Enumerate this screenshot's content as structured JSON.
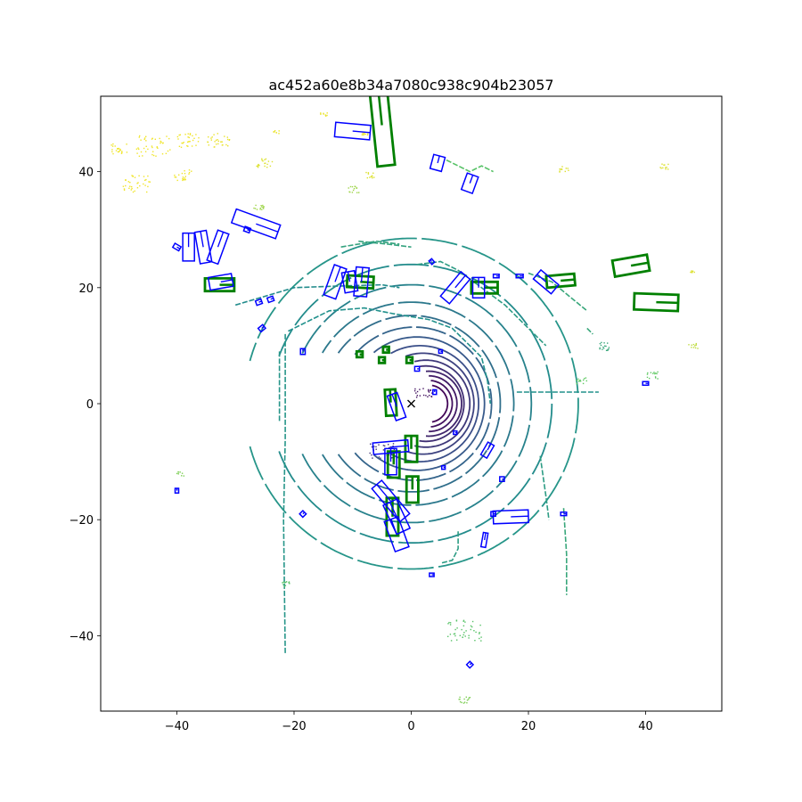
{
  "chart_data": {
    "type": "scatter",
    "title": "ac452a60e8b34a7080c938c904b23057",
    "xlabel": "",
    "ylabel": "",
    "xlim": [
      -53,
      53
    ],
    "ylim": [
      -53,
      53
    ],
    "xticks": [
      -40,
      -20,
      0,
      20,
      40
    ],
    "yticks": [
      -40,
      -20,
      0,
      20,
      40
    ],
    "xtick_labels": [
      "−40",
      "−20",
      "0",
      "20",
      "40"
    ],
    "ytick_labels": [
      "−40",
      "−20",
      "0",
      "20",
      "40"
    ],
    "grid": false,
    "ego_marker": {
      "x": 0,
      "y": 0,
      "symbol": "x"
    },
    "colors": {
      "prediction_boxes": "#0000ff",
      "ground_truth_boxes": "#008000",
      "point_colormap": [
        "#440154",
        "#3b528b",
        "#21918c",
        "#5ec962",
        "#fde725"
      ]
    },
    "point_rings": [
      {
        "cx": 3,
        "cy": 0,
        "r": 3.2,
        "t0": -80,
        "t1": 80,
        "level": 0.02
      },
      {
        "cx": 3,
        "cy": 0,
        "r": 4.0,
        "t0": -85,
        "t1": 85,
        "level": 0.05
      },
      {
        "cx": 3,
        "cy": 0,
        "r": 4.8,
        "t0": -90,
        "t1": 90,
        "level": 0.08
      },
      {
        "cx": 3,
        "cy": 0,
        "r": 5.6,
        "t0": -95,
        "t1": 95,
        "level": 0.11
      },
      {
        "cx": 2.5,
        "cy": 0,
        "r": 6.5,
        "t0": -100,
        "t1": 100,
        "level": 0.14
      },
      {
        "cx": 2.5,
        "cy": 0,
        "r": 7.5,
        "t0": -105,
        "t1": 105,
        "level": 0.17
      },
      {
        "cx": 2,
        "cy": 0,
        "r": 8.7,
        "t0": -110,
        "t1": 110,
        "level": 0.2
      },
      {
        "cx": 1.5,
        "cy": 0,
        "r": 10.0,
        "t0": -120,
        "t1": 120,
        "level": 0.24
      },
      {
        "cx": 1,
        "cy": 0,
        "r": 11.5,
        "t0": -130,
        "t1": 130,
        "level": 0.28
      },
      {
        "cx": 0.5,
        "cy": 0,
        "r": 13.2,
        "t0": -140,
        "t1": 140,
        "level": 0.32
      },
      {
        "cx": 0,
        "cy": 0,
        "r": 15.2,
        "t0": -145,
        "t1": 145,
        "level": 0.36
      },
      {
        "cx": 0,
        "cy": 0,
        "r": 17.5,
        "t0": -150,
        "t1": 150,
        "level": 0.4
      },
      {
        "cx": 0,
        "cy": 0,
        "r": 20.5,
        "t0": -155,
        "t1": 155,
        "level": 0.44
      },
      {
        "cx": 0,
        "cy": 0,
        "r": 24.0,
        "t0": -160,
        "t1": 160,
        "level": 0.48
      },
      {
        "cx": 0,
        "cy": 0,
        "r": 28.5,
        "t0": -165,
        "t1": 165,
        "level": 0.52
      }
    ],
    "point_polylines": [
      {
        "level": 0.52,
        "points": [
          [
            -21.5,
            12
          ],
          [
            -21.5,
            -6
          ],
          [
            -21.8,
            -20
          ],
          [
            -21.5,
            -43
          ]
        ]
      },
      {
        "level": 0.52,
        "points": [
          [
            -22.5,
            9
          ],
          [
            -22.5,
            -3
          ]
        ]
      },
      {
        "level": 0.55,
        "points": [
          [
            22,
            -9
          ],
          [
            23,
            -16
          ],
          [
            23.5,
            -20
          ]
        ]
      },
      {
        "level": 0.6,
        "points": [
          [
            26,
            -18
          ],
          [
            26.5,
            -26
          ],
          [
            26.5,
            -33
          ]
        ]
      },
      {
        "level": 0.5,
        "points": [
          [
            -21,
            12.5
          ],
          [
            -14,
            16
          ],
          [
            -8,
            16.5
          ],
          [
            -3,
            15.5
          ],
          [
            3,
            14.5
          ],
          [
            7,
            13
          ],
          [
            10,
            10
          ],
          [
            12,
            8
          ],
          [
            13,
            4
          ],
          [
            13.5,
            0
          ]
        ]
      },
      {
        "level": 0.48,
        "points": [
          [
            -30,
            17
          ],
          [
            -20,
            20
          ],
          [
            -12,
            20.3
          ],
          [
            -5,
            20.5
          ],
          [
            -2,
            20
          ]
        ]
      },
      {
        "level": 0.55,
        "points": [
          [
            1,
            24
          ],
          [
            5,
            24.5
          ],
          [
            8,
            23
          ],
          [
            12,
            20
          ],
          [
            16,
            17
          ],
          [
            19,
            14
          ],
          [
            23,
            10
          ]
        ]
      },
      {
        "level": 0.58,
        "points": [
          [
            -9,
            28
          ],
          [
            -4,
            27.5
          ],
          [
            0,
            27
          ]
        ]
      },
      {
        "level": 0.6,
        "points": [
          [
            20,
            22.5
          ],
          [
            24,
            21
          ],
          [
            27,
            18.5
          ],
          [
            30,
            16
          ]
        ]
      },
      {
        "level": 0.5,
        "points": [
          [
            18,
            2
          ],
          [
            20,
            2
          ],
          [
            24,
            2
          ],
          [
            28,
            2
          ],
          [
            32,
            2
          ]
        ]
      },
      {
        "level": 0.55,
        "points": [
          [
            8,
            -22
          ],
          [
            8,
            -25
          ],
          [
            7,
            -27
          ],
          [
            5,
            -27.5
          ]
        ]
      },
      {
        "level": 0.58,
        "points": [
          [
            -12,
            27
          ],
          [
            -6,
            28
          ],
          [
            -2,
            27.5
          ]
        ]
      },
      {
        "level": 0.72,
        "points": [
          [
            6,
            42
          ],
          [
            8,
            41
          ],
          [
            10,
            40
          ],
          [
            12,
            41
          ],
          [
            14,
            40
          ]
        ]
      },
      {
        "level": 0.6,
        "points": [
          [
            30,
            13
          ],
          [
            31,
            12
          ]
        ]
      }
    ],
    "point_clusters": [
      {
        "x": -50,
        "y": 44,
        "spread": 1.5,
        "level": 0.98
      },
      {
        "x": -44,
        "y": 44.5,
        "spread": 3,
        "level": 0.98
      },
      {
        "x": -38,
        "y": 45.5,
        "spread": 2,
        "level": 0.98
      },
      {
        "x": -33,
        "y": 45.5,
        "spread": 2,
        "level": 0.97
      },
      {
        "x": -47,
        "y": 38,
        "spread": 2.5,
        "level": 0.98
      },
      {
        "x": -39,
        "y": 39.5,
        "spread": 1.5,
        "level": 0.98
      },
      {
        "x": -25,
        "y": 41.5,
        "spread": 1.5,
        "level": 0.95
      },
      {
        "x": -23,
        "y": 47,
        "spread": 0.6,
        "level": 0.97
      },
      {
        "x": -15,
        "y": 50,
        "spread": 0.6,
        "level": 0.97
      },
      {
        "x": -8,
        "y": 46.5,
        "spread": 0.6,
        "level": 0.97
      },
      {
        "x": -7,
        "y": 39.5,
        "spread": 0.8,
        "level": 0.95
      },
      {
        "x": 26,
        "y": 40.5,
        "spread": 0.8,
        "level": 0.95
      },
      {
        "x": 43,
        "y": 41,
        "spread": 0.8,
        "level": 0.95
      },
      {
        "x": 48,
        "y": 10,
        "spread": 0.8,
        "level": 0.9
      },
      {
        "x": 48,
        "y": 23,
        "spread": 0.6,
        "level": 0.95
      },
      {
        "x": 29,
        "y": 4,
        "spread": 1,
        "level": 0.75
      },
      {
        "x": 41,
        "y": 5,
        "spread": 1,
        "level": 0.75
      },
      {
        "x": 33,
        "y": 10,
        "spread": 1.2,
        "level": 0.6
      },
      {
        "x": -10,
        "y": 37,
        "spread": 1,
        "level": 0.85
      },
      {
        "x": -26,
        "y": 34,
        "spread": 1,
        "level": 0.85
      },
      {
        "x": 9,
        "y": -39,
        "spread": 3,
        "level": 0.72
      },
      {
        "x": 9,
        "y": -51,
        "spread": 1,
        "level": 0.8
      },
      {
        "x": -21.5,
        "y": -31,
        "spread": 0.8,
        "level": 0.72
      },
      {
        "x": -39.5,
        "y": -12,
        "spread": 0.6,
        "level": 0.8
      },
      {
        "x": -5,
        "y": -8,
        "spread": 2.2,
        "level": 0.15
      },
      {
        "x": 2,
        "y": 2,
        "spread": 1.5,
        "level": 0.05
      }
    ],
    "boxes": [
      {
        "kind": "gt",
        "cx": -5.0,
        "cy": 48.0,
        "w": 3.0,
        "h": 14.0,
        "angle": 6
      },
      {
        "kind": "gt",
        "cx": 41.8,
        "cy": 17.5,
        "w": 7.5,
        "h": 2.8,
        "angle": -2
      },
      {
        "kind": "gt",
        "cx": 37.5,
        "cy": 23.8,
        "w": 6.0,
        "h": 2.8,
        "angle": 10
      },
      {
        "kind": "gt",
        "cx": 25.5,
        "cy": 21.2,
        "w": 4.8,
        "h": 2.0,
        "angle": 5
      },
      {
        "kind": "gt",
        "cx": 12.5,
        "cy": 20.0,
        "w": 4.5,
        "h": 2.0,
        "angle": 0
      },
      {
        "kind": "gt",
        "cx": -8.7,
        "cy": 21.0,
        "w": 4.5,
        "h": 2.0,
        "angle": -3
      },
      {
        "kind": "gt",
        "cx": -32.7,
        "cy": 20.5,
        "w": 5.0,
        "h": 2.2,
        "angle": 0
      },
      {
        "kind": "gt",
        "cx": -3.5,
        "cy": 0.2,
        "w": 1.8,
        "h": 4.5,
        "angle": 3
      },
      {
        "kind": "gt",
        "cx": -3.0,
        "cy": -10.5,
        "w": 2.0,
        "h": 4.5,
        "angle": 0
      },
      {
        "kind": "gt",
        "cx": 0.0,
        "cy": -7.8,
        "w": 2.0,
        "h": 4.5,
        "angle": 0
      },
      {
        "kind": "gt",
        "cx": 0.2,
        "cy": -14.8,
        "w": 2.0,
        "h": 4.5,
        "angle": 0
      },
      {
        "kind": "gt",
        "cx": -3.2,
        "cy": -19.5,
        "w": 2.0,
        "h": 6.5,
        "angle": 0
      },
      {
        "kind": "gt",
        "cx": -5.0,
        "cy": 7.5,
        "w": 1.0,
        "h": 1.0,
        "angle": 0
      },
      {
        "kind": "gt",
        "cx": -4.3,
        "cy": 9.3,
        "w": 1.0,
        "h": 1.0,
        "angle": 0
      },
      {
        "kind": "gt",
        "cx": -0.3,
        "cy": 7.5,
        "w": 1.0,
        "h": 1.0,
        "angle": 0
      },
      {
        "kind": "gt",
        "cx": -8.8,
        "cy": 8.5,
        "w": 1.0,
        "h": 1.0,
        "angle": 0
      },
      {
        "kind": "pred",
        "cx": -10.0,
        "cy": 47.0,
        "w": 6.0,
        "h": 2.5,
        "angle": -5
      },
      {
        "kind": "pred",
        "cx": 4.5,
        "cy": 41.5,
        "w": 2.0,
        "h": 2.5,
        "angle": -15
      },
      {
        "kind": "pred",
        "cx": 10.0,
        "cy": 38.0,
        "w": 2.0,
        "h": 3.0,
        "angle": -20
      },
      {
        "kind": "pred",
        "cx": -26.5,
        "cy": 31.0,
        "w": 8.0,
        "h": 2.5,
        "angle": -20
      },
      {
        "kind": "pred",
        "cx": -38.0,
        "cy": 27.0,
        "w": 2.0,
        "h": 4.8,
        "angle": 0
      },
      {
        "kind": "pred",
        "cx": -35.5,
        "cy": 27.0,
        "w": 2.0,
        "h": 5.5,
        "angle": 10
      },
      {
        "kind": "pred",
        "cx": -33.0,
        "cy": 27.0,
        "w": 2.0,
        "h": 5.5,
        "angle": -20
      },
      {
        "kind": "pred",
        "cx": -32.5,
        "cy": 21.0,
        "w": 4.0,
        "h": 2.2,
        "angle": 10
      },
      {
        "kind": "pred",
        "cx": -13.0,
        "cy": 21.0,
        "w": 2.2,
        "h": 5.5,
        "angle": -20
      },
      {
        "kind": "pred",
        "cx": -10.5,
        "cy": 21.0,
        "w": 2.2,
        "h": 3.5,
        "angle": 10
      },
      {
        "kind": "pred",
        "cx": -8.5,
        "cy": 21.0,
        "w": 2.2,
        "h": 5.0,
        "angle": -5
      },
      {
        "kind": "pred",
        "cx": 7.5,
        "cy": 20.0,
        "w": 2.0,
        "h": 5.5,
        "angle": -40
      },
      {
        "kind": "pred",
        "cx": 11.5,
        "cy": 20.0,
        "w": 2.0,
        "h": 3.5,
        "angle": 0
      },
      {
        "kind": "pred",
        "cx": 23.0,
        "cy": 21.0,
        "w": 2.0,
        "h": 4.0,
        "angle": 50
      },
      {
        "kind": "pred",
        "cx": -2.5,
        "cy": -0.5,
        "w": 1.8,
        "h": 4.5,
        "angle": 20
      },
      {
        "kind": "pred",
        "cx": -3.5,
        "cy": -7.5,
        "w": 6.0,
        "h": 2.0,
        "angle": 5
      },
      {
        "kind": "pred",
        "cx": -3.5,
        "cy": -10.0,
        "w": 2.0,
        "h": 4.5,
        "angle": 0
      },
      {
        "kind": "pred",
        "cx": -3.5,
        "cy": -16.8,
        "w": 2.2,
        "h": 7.5,
        "angle": 40
      },
      {
        "kind": "pred",
        "cx": -2.5,
        "cy": -19.5,
        "w": 2.5,
        "h": 5.5,
        "angle": 25
      },
      {
        "kind": "pred",
        "cx": -2.5,
        "cy": -22.5,
        "w": 2.5,
        "h": 5.5,
        "angle": 20
      },
      {
        "kind": "pred",
        "cx": 17.0,
        "cy": -19.5,
        "w": 6.0,
        "h": 2.2,
        "angle": 2
      },
      {
        "kind": "pred",
        "cx": 13.0,
        "cy": -8.0,
        "w": 1.2,
        "h": 2.5,
        "angle": -30
      },
      {
        "kind": "pred",
        "cx": 12.5,
        "cy": -23.5,
        "w": 0.8,
        "h": 2.5,
        "angle": -10
      },
      {
        "kind": "pred",
        "cx": -40.0,
        "cy": 27.0,
        "w": 1.2,
        "h": 0.8,
        "angle": -30
      },
      {
        "kind": "pred",
        "cx": -28.0,
        "cy": 30.0,
        "w": 1.0,
        "h": 0.8,
        "angle": -20
      },
      {
        "kind": "pred",
        "cx": -24.0,
        "cy": 18.0,
        "w": 1.0,
        "h": 0.8,
        "angle": 20
      },
      {
        "kind": "pred",
        "cx": -26.0,
        "cy": 17.5,
        "w": 1.0,
        "h": 0.8,
        "angle": 20
      },
      {
        "kind": "pred",
        "cx": -25.5,
        "cy": 13.0,
        "w": 1.0,
        "h": 0.8,
        "angle": 40
      },
      {
        "kind": "pred",
        "cx": -18.5,
        "cy": 9.0,
        "w": 0.8,
        "h": 1.0,
        "angle": 0
      },
      {
        "kind": "pred",
        "cx": -18.5,
        "cy": -19.0,
        "w": 0.8,
        "h": 0.8,
        "angle": 45
      },
      {
        "kind": "pred",
        "cx": -40.0,
        "cy": -15.0,
        "w": 0.6,
        "h": 0.8,
        "angle": 0
      },
      {
        "kind": "pred",
        "cx": 3.5,
        "cy": -29.5,
        "w": 0.8,
        "h": 0.6,
        "angle": 0
      },
      {
        "kind": "pred",
        "cx": 10.0,
        "cy": -45.0,
        "w": 0.8,
        "h": 0.8,
        "angle": 45
      },
      {
        "kind": "pred",
        "cx": 26.0,
        "cy": -19.0,
        "w": 1.0,
        "h": 0.6,
        "angle": 0
      },
      {
        "kind": "pred",
        "cx": 40.0,
        "cy": 3.5,
        "w": 1.0,
        "h": 0.6,
        "angle": 0
      },
      {
        "kind": "pred",
        "cx": 18.5,
        "cy": 22.0,
        "w": 1.2,
        "h": 0.6,
        "angle": 0
      },
      {
        "kind": "pred",
        "cx": 14.5,
        "cy": 22.0,
        "w": 1.0,
        "h": 0.6,
        "angle": 0
      },
      {
        "kind": "pred",
        "cx": 3.5,
        "cy": 24.5,
        "w": 0.6,
        "h": 0.8,
        "angle": 40
      },
      {
        "kind": "pred",
        "cx": 14.0,
        "cy": -19.0,
        "w": 0.8,
        "h": 0.8,
        "angle": 0
      },
      {
        "kind": "pred",
        "cx": 15.5,
        "cy": -13.0,
        "w": 0.8,
        "h": 0.8,
        "angle": 0
      },
      {
        "kind": "pred",
        "cx": 1.0,
        "cy": 6.0,
        "w": 0.8,
        "h": 0.8,
        "angle": 0
      },
      {
        "kind": "pred",
        "cx": 4.0,
        "cy": 2.0,
        "w": 0.6,
        "h": 0.8,
        "angle": 0
      },
      {
        "kind": "pred",
        "cx": 5.5,
        "cy": -11.0,
        "w": 0.6,
        "h": 0.6,
        "angle": 0
      },
      {
        "kind": "pred",
        "cx": 7.5,
        "cy": -5.0,
        "w": 0.6,
        "h": 0.6,
        "angle": 0
      },
      {
        "kind": "pred",
        "cx": 5.0,
        "cy": 9.0,
        "w": 0.6,
        "h": 0.6,
        "angle": 0
      }
    ]
  }
}
